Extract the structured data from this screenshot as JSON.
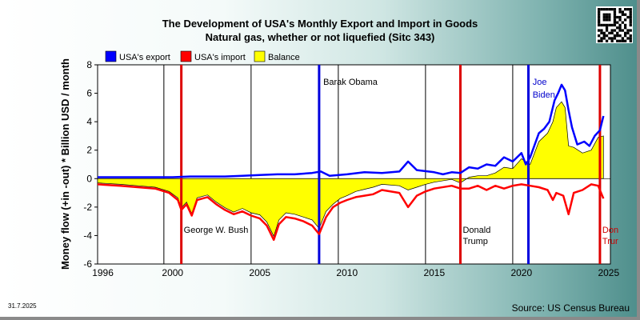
{
  "title_line1": "The Development of USA's Monthly Export and Import in Goods",
  "title_line2": "Natural gas, whether or not liquefied (Sitc 343)",
  "date_stamp": "31.7.2025",
  "source": "Source: US Census Bureau",
  "colors": {
    "export": "#0000ff",
    "import": "#ff0000",
    "balance": "#ffff00",
    "vline_red": "#dd0000",
    "vline_blue": "#0000dd",
    "president_blue": "#0000cc"
  },
  "chart_data": {
    "type": "line",
    "ylabel": "Money flow (+in -out) * Billion USD / month",
    "xlabel": "",
    "xlim": [
      1995.7,
      2025.1
    ],
    "ylim": [
      -6,
      8
    ],
    "y_ticks": [
      -6,
      -4,
      -2,
      0,
      2,
      4,
      6,
      8
    ],
    "x_ticks": [
      1996,
      2000,
      2005,
      2010,
      2015,
      2020,
      2025
    ],
    "grid": "vertical year lines",
    "legend": {
      "placement": "top-left",
      "entries": [
        "USA's export",
        "USA's import",
        "Balance"
      ]
    },
    "series": [
      {
        "name": "USA's export",
        "color": "#0000ff",
        "points": [
          [
            1995.7,
            0.1
          ],
          [
            1997,
            0.1
          ],
          [
            1999,
            0.1
          ],
          [
            2000,
            0.1
          ],
          [
            2001,
            0.15
          ],
          [
            2002,
            0.15
          ],
          [
            2003,
            0.15
          ],
          [
            2004,
            0.2
          ],
          [
            2005,
            0.25
          ],
          [
            2006,
            0.3
          ],
          [
            2007,
            0.3
          ],
          [
            2008,
            0.4
          ],
          [
            2008.5,
            0.5
          ],
          [
            2009,
            0.2
          ],
          [
            2010,
            0.3
          ],
          [
            2011,
            0.45
          ],
          [
            2012,
            0.4
          ],
          [
            2013,
            0.5
          ],
          [
            2013.5,
            1.2
          ],
          [
            2014,
            0.6
          ],
          [
            2015,
            0.45
          ],
          [
            2015.5,
            0.3
          ],
          [
            2016,
            0.45
          ],
          [
            2016.5,
            0.4
          ],
          [
            2017,
            0.8
          ],
          [
            2017.5,
            0.7
          ],
          [
            2018,
            1.0
          ],
          [
            2018.5,
            0.9
          ],
          [
            2019,
            1.5
          ],
          [
            2019.5,
            1.2
          ],
          [
            2020,
            1.8
          ],
          [
            2020.25,
            1.0
          ],
          [
            2020.5,
            1.5
          ],
          [
            2021,
            3.2
          ],
          [
            2021.3,
            3.5
          ],
          [
            2021.6,
            4.0
          ],
          [
            2021.9,
            5.5
          ],
          [
            2022.1,
            6.0
          ],
          [
            2022.3,
            6.6
          ],
          [
            2022.5,
            6.2
          ],
          [
            2022.7,
            4.8
          ],
          [
            2022.9,
            3.6
          ],
          [
            2023.2,
            2.4
          ],
          [
            2023.6,
            2.6
          ],
          [
            2023.9,
            2.3
          ],
          [
            2024.2,
            3.0
          ],
          [
            2024.5,
            3.4
          ],
          [
            2024.7,
            4.4
          ]
        ]
      },
      {
        "name": "USA's import",
        "color": "#ff0000",
        "points": [
          [
            1995.7,
            -0.4
          ],
          [
            1997,
            -0.5
          ],
          [
            1998,
            -0.6
          ],
          [
            1999,
            -0.7
          ],
          [
            1999.8,
            -1.0
          ],
          [
            2000.3,
            -1.5
          ],
          [
            2000.5,
            -2.2
          ],
          [
            2000.8,
            -1.8
          ],
          [
            2001.1,
            -2.6
          ],
          [
            2001.4,
            -1.5
          ],
          [
            2002,
            -1.3
          ],
          [
            2002.5,
            -1.8
          ],
          [
            2003,
            -2.2
          ],
          [
            2003.5,
            -2.5
          ],
          [
            2004,
            -2.3
          ],
          [
            2004.5,
            -2.6
          ],
          [
            2005,
            -2.8
          ],
          [
            2005.4,
            -3.3
          ],
          [
            2005.8,
            -4.3
          ],
          [
            2006.1,
            -3.2
          ],
          [
            2006.5,
            -2.7
          ],
          [
            2007,
            -2.8
          ],
          [
            2007.5,
            -3.0
          ],
          [
            2008,
            -3.3
          ],
          [
            2008.4,
            -3.9
          ],
          [
            2008.8,
            -2.7
          ],
          [
            2009.2,
            -2.0
          ],
          [
            2009.6,
            -1.7
          ],
          [
            2010,
            -1.5
          ],
          [
            2010.5,
            -1.3
          ],
          [
            2011,
            -1.2
          ],
          [
            2011.5,
            -1.1
          ],
          [
            2012,
            -0.8
          ],
          [
            2013,
            -1.0
          ],
          [
            2013.5,
            -2.0
          ],
          [
            2014,
            -1.2
          ],
          [
            2014.5,
            -0.9
          ],
          [
            2015,
            -0.7
          ],
          [
            2016,
            -0.5
          ],
          [
            2016.5,
            -0.7
          ],
          [
            2017,
            -0.7
          ],
          [
            2017.5,
            -0.5
          ],
          [
            2018,
            -0.8
          ],
          [
            2018.5,
            -0.5
          ],
          [
            2019,
            -0.7
          ],
          [
            2019.5,
            -0.5
          ],
          [
            2020,
            -0.4
          ],
          [
            2020.5,
            -0.5
          ],
          [
            2021,
            -0.6
          ],
          [
            2021.5,
            -0.8
          ],
          [
            2021.8,
            -1.5
          ],
          [
            2022,
            -1.0
          ],
          [
            2022.4,
            -1.2
          ],
          [
            2022.7,
            -2.5
          ],
          [
            2023,
            -1.0
          ],
          [
            2023.5,
            -0.8
          ],
          [
            2024,
            -0.4
          ],
          [
            2024.4,
            -0.5
          ],
          [
            2024.7,
            -1.4
          ]
        ]
      },
      {
        "name": "Balance",
        "color": "#ffff00",
        "points": [
          [
            1995.7,
            -0.3
          ],
          [
            1997,
            -0.4
          ],
          [
            1998,
            -0.5
          ],
          [
            1999,
            -0.6
          ],
          [
            1999.8,
            -0.9
          ],
          [
            2000.3,
            -1.35
          ],
          [
            2000.5,
            -2.05
          ],
          [
            2000.8,
            -1.65
          ],
          [
            2001.1,
            -2.45
          ],
          [
            2001.4,
            -1.35
          ],
          [
            2002,
            -1.15
          ],
          [
            2002.5,
            -1.65
          ],
          [
            2003,
            -2.05
          ],
          [
            2003.5,
            -2.35
          ],
          [
            2004,
            -2.1
          ],
          [
            2004.5,
            -2.4
          ],
          [
            2005,
            -2.55
          ],
          [
            2005.4,
            -3.05
          ],
          [
            2005.8,
            -4.05
          ],
          [
            2006.1,
            -2.9
          ],
          [
            2006.5,
            -2.4
          ],
          [
            2007,
            -2.5
          ],
          [
            2007.5,
            -2.7
          ],
          [
            2008,
            -2.9
          ],
          [
            2008.4,
            -3.5
          ],
          [
            2008.8,
            -2.3
          ],
          [
            2009.2,
            -1.8
          ],
          [
            2009.6,
            -1.4
          ],
          [
            2010,
            -1.2
          ],
          [
            2010.5,
            -0.9
          ],
          [
            2011,
            -0.75
          ],
          [
            2011.5,
            -0.6
          ],
          [
            2012,
            -0.4
          ],
          [
            2013,
            -0.5
          ],
          [
            2013.5,
            -0.8
          ],
          [
            2014,
            -0.6
          ],
          [
            2014.5,
            -0.4
          ],
          [
            2015,
            -0.25
          ],
          [
            2016,
            -0.05
          ],
          [
            2016.5,
            -0.3
          ],
          [
            2017,
            0.1
          ],
          [
            2017.5,
            0.2
          ],
          [
            2018,
            0.2
          ],
          [
            2018.5,
            0.4
          ],
          [
            2019,
            0.8
          ],
          [
            2019.5,
            0.7
          ],
          [
            2020,
            1.4
          ],
          [
            2020.5,
            1.0
          ],
          [
            2021,
            2.6
          ],
          [
            2021.5,
            3.2
          ],
          [
            2021.8,
            4.0
          ],
          [
            2022,
            5.0
          ],
          [
            2022.3,
            5.4
          ],
          [
            2022.5,
            5.0
          ],
          [
            2022.7,
            2.3
          ],
          [
            2023,
            2.2
          ],
          [
            2023.5,
            1.8
          ],
          [
            2024,
            2.0
          ],
          [
            2024.4,
            2.9
          ],
          [
            2024.7,
            3.0
          ]
        ]
      }
    ],
    "vertical_lines": [
      {
        "x": 2000.5,
        "color": "#dd0000"
      },
      {
        "x": 2008.4,
        "color": "#0000dd"
      },
      {
        "x": 2016.5,
        "color": "#dd0000"
      },
      {
        "x": 2020.4,
        "color": "#0000dd"
      },
      {
        "x": 2024.5,
        "color": "#dd0000"
      }
    ],
    "annotations": [
      {
        "text": "Barak Obama",
        "x": 2008.5,
        "y": 6.6,
        "color": "#000000",
        "anchor": "start"
      },
      {
        "text": "Joe",
        "x": 2020.5,
        "y": 6.6,
        "color": "#0000cc",
        "anchor": "start"
      },
      {
        "text": "Biden",
        "x": 2020.5,
        "y": 5.7,
        "color": "#0000cc",
        "anchor": "start"
      },
      {
        "text": "George W. Bush",
        "x": 2000.5,
        "y": -3.8,
        "color": "#000000",
        "anchor": "start"
      },
      {
        "text": "Donald",
        "x": 2016.5,
        "y": -3.8,
        "color": "#000000",
        "anchor": "start"
      },
      {
        "text": "Trump",
        "x": 2016.5,
        "y": -4.6,
        "color": "#000000",
        "anchor": "start"
      },
      {
        "text": "Don",
        "x": 2024.5,
        "y": -3.8,
        "color": "#cc0000",
        "anchor": "start"
      },
      {
        "text": "Trur",
        "x": 2024.5,
        "y": -4.6,
        "color": "#cc0000",
        "anchor": "start"
      }
    ]
  }
}
